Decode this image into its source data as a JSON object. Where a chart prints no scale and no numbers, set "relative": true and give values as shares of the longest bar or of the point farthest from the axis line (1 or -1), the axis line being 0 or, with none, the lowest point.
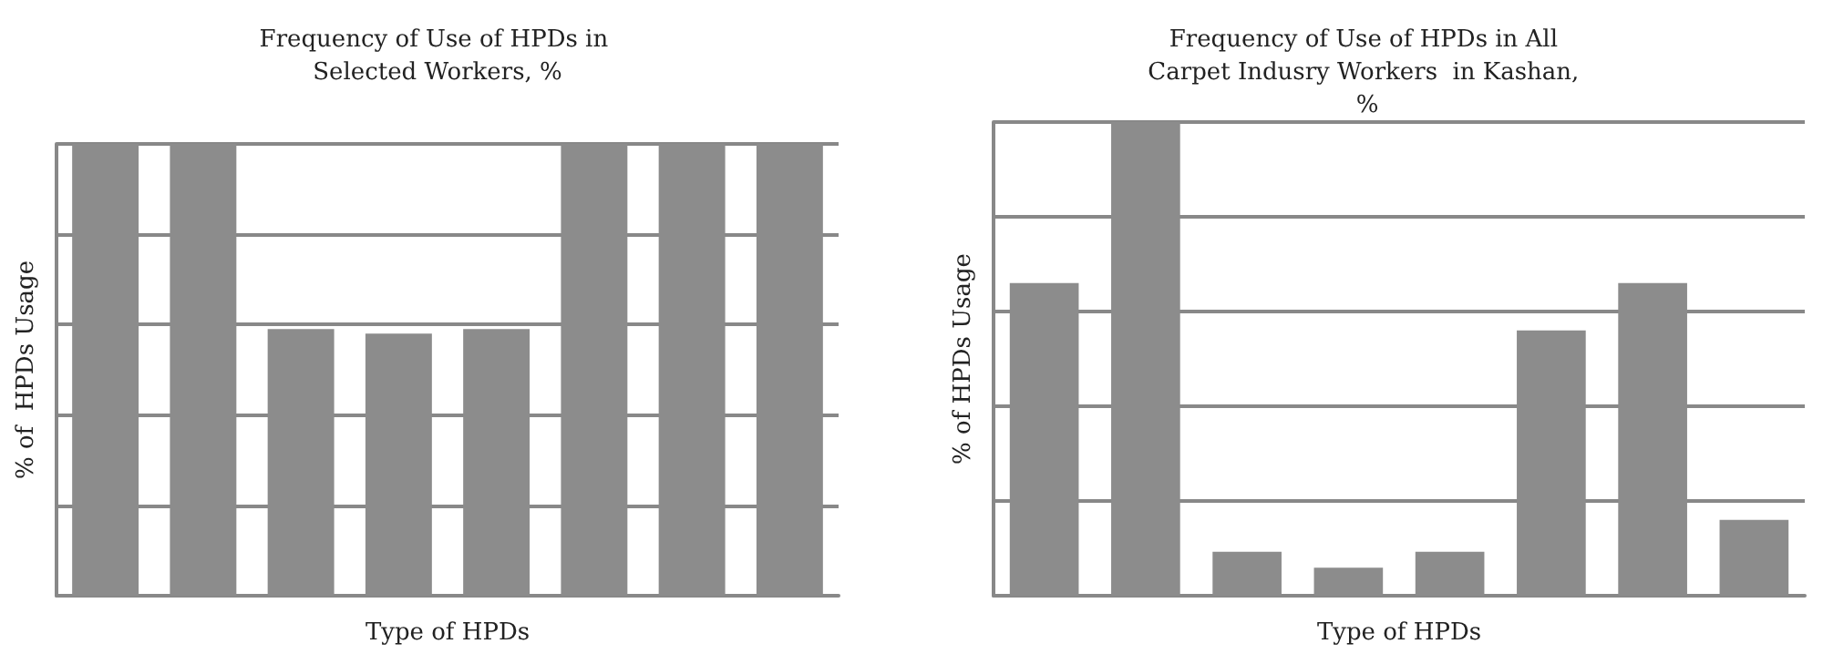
{
  "chart_data": [
    {
      "type": "bar",
      "title": "Frequency of Use of HPDs in Selected Workers, %",
      "xlabel": "Type of HPDs",
      "ylabel": "% of  HPDs Usage",
      "categories": [
        null,
        null,
        null,
        null,
        null,
        null,
        null,
        null
      ],
      "relative": true,
      "grid": "y",
      "color": "#8c8c8c",
      "values": [
        1,
        1,
        0.59,
        0.58,
        0.59,
        1,
        1,
        1
      ]
    },
    {
      "type": "bar",
      "title": "Frequency of Use of HPDs in All Carpet Indusry Workers  in Kashan, %",
      "xlabel": "Type of HPDs",
      "ylabel": "% of HPDs Usage",
      "categories": [
        null,
        null,
        null,
        null,
        null,
        null,
        null,
        null
      ],
      "relative": true,
      "grid": "y",
      "color": "#8c8c8c",
      "values": [
        0.66,
        1,
        0.093,
        0.059,
        0.093,
        0.56,
        0.66,
        0.16
      ]
    }
  ]
}
